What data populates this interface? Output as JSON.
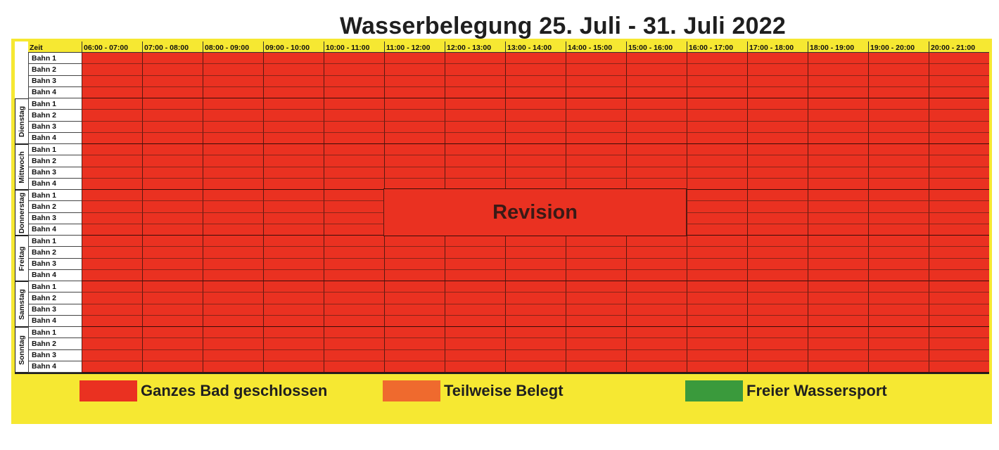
{
  "title": "Wasserbelegung 25. Juli - 31. Juli 2022",
  "header_zeit": "Zeit",
  "time_slots": [
    "06:00 - 07:00",
    "07:00 - 08:00",
    "08:00 - 09:00",
    "09:00 - 10:00",
    "10:00 - 11:00",
    "11:00 - 12:00",
    "12:00 - 13:00",
    "13:00 - 14:00",
    "14:00 - 15:00",
    "15:00 - 16:00",
    "16:00 - 17:00",
    "17:00 - 18:00",
    "18:00 - 19:00",
    "19:00 - 20:00",
    "20:00 - 21:00"
  ],
  "days": [
    "",
    "Dienstag",
    "Mittwoch",
    "Donnerstag",
    "Freitag",
    "Samstag",
    "Sonntag"
  ],
  "lanes": [
    "Bahn 1",
    "Bahn 2",
    "Bahn 3",
    "Bahn 4"
  ],
  "revision_label": "Revision",
  "colors": {
    "closed": "#ea3121",
    "partial": "#ef6a2e",
    "free": "#3a9a3c",
    "header": "#f6e832"
  },
  "legend": [
    {
      "label": "Ganzes Bad geschlossen",
      "color": "#ea3121"
    },
    {
      "label": "Teilweise Belegt",
      "color": "#ef6a2e"
    },
    {
      "label": "Freier Wassersport",
      "color": "#3a9a3c"
    }
  ]
}
